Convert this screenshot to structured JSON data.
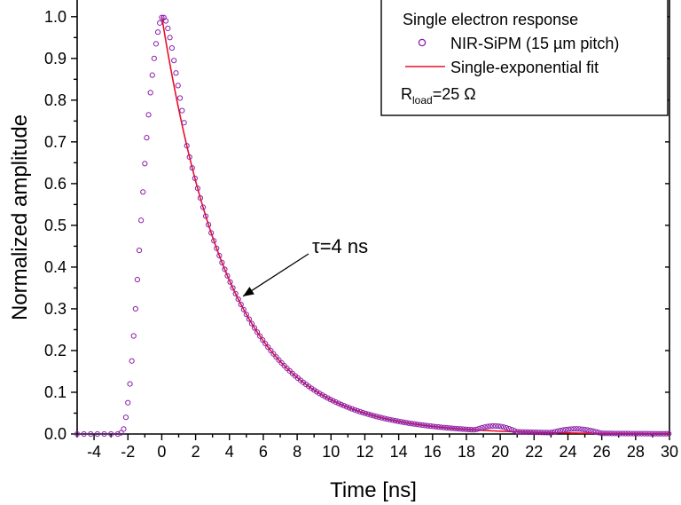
{
  "chart_data": {
    "type": "scatter",
    "title": "",
    "xlabel": "Time [ns]",
    "ylabel": "Normalized amplitude",
    "xlim": [
      -5,
      30
    ],
    "ylim": [
      0,
      1.04
    ],
    "x_ticks": [
      -4,
      -2,
      0,
      2,
      4,
      6,
      8,
      10,
      12,
      14,
      16,
      18,
      20,
      22,
      24,
      26,
      28,
      30
    ],
    "y_ticks": [
      0.0,
      0.1,
      0.2,
      0.3,
      0.4,
      0.5,
      0.6,
      0.7,
      0.8,
      0.9,
      1.0
    ],
    "x_tick_labels": [
      "-4",
      "-2",
      "0",
      "2",
      "4",
      "6",
      "8",
      "10",
      "12",
      "14",
      "16",
      "18",
      "20",
      "22",
      "24",
      "26",
      "28",
      "30"
    ],
    "y_tick_labels": [
      "0.0",
      "0.1",
      "0.2",
      "0.3",
      "0.4",
      "0.5",
      "0.6",
      "0.7",
      "0.8",
      "0.9",
      "1.0"
    ],
    "grid": false,
    "legend": {
      "position": "top-right",
      "title": "Single electron response",
      "entries": [
        {
          "label": "NIR-SiPM (15 µm pitch)",
          "marker": "open-circle",
          "color": "#8B1FA9"
        },
        {
          "label": "Single-exponential fit",
          "marker": "line",
          "color": "#E8102A"
        }
      ],
      "note_prefix": "R",
      "note_sub": "load",
      "note_suffix": "=25 Ω"
    },
    "annotation": {
      "text": "τ=4 ns",
      "arrow_to": [
        4.8,
        0.33
      ]
    },
    "series": [
      {
        "name": "NIR-SiPM (15 µm pitch)",
        "style": "markers",
        "color": "#8B1FA9",
        "points": [
          [
            -5,
            0.0
          ],
          [
            -4.6,
            0.0
          ],
          [
            -4.2,
            0.0
          ],
          [
            -3.8,
            0.0
          ],
          [
            -3.4,
            0.0
          ],
          [
            -3.0,
            0.0
          ],
          [
            -2.6,
            0.0
          ],
          [
            -2.4,
            0.003
          ],
          [
            -2.25,
            0.012
          ],
          [
            -2.12,
            0.04
          ],
          [
            -2.0,
            0.075
          ],
          [
            -1.88,
            0.12
          ],
          [
            -1.77,
            0.175
          ],
          [
            -1.66,
            0.235
          ],
          [
            -1.55,
            0.3
          ],
          [
            -1.44,
            0.37
          ],
          [
            -1.33,
            0.44
          ],
          [
            -1.22,
            0.512
          ],
          [
            -1.11,
            0.58
          ],
          [
            -1.0,
            0.648
          ],
          [
            -0.89,
            0.71
          ],
          [
            -0.78,
            0.765
          ],
          [
            -0.67,
            0.818
          ],
          [
            -0.56,
            0.86
          ],
          [
            -0.45,
            0.9
          ],
          [
            -0.34,
            0.935
          ],
          [
            -0.23,
            0.963
          ],
          [
            -0.12,
            0.985
          ],
          [
            0.0,
            0.998
          ],
          [
            0.12,
            0.998
          ],
          [
            0.24,
            0.99
          ],
          [
            0.36,
            0.972
          ],
          [
            0.48,
            0.95
          ],
          [
            0.6,
            0.925
          ],
          [
            0.72,
            0.895
          ],
          [
            0.84,
            0.865
          ],
          [
            0.96,
            0.835
          ],
          [
            1.08,
            0.805
          ],
          [
            1.2,
            0.775
          ],
          [
            1.32,
            0.746
          ]
        ],
        "decay_from": 1.32,
        "decay_to": 30,
        "decay_step": 0.16,
        "decay_amplitude": 1.0,
        "decay_tau_ns": 4
      },
      {
        "name": "Single-exponential fit",
        "style": "line",
        "color": "#E8102A",
        "x_start": 0.0,
        "x_end": 30,
        "amplitude": 1.0,
        "tau_ns": 4
      }
    ]
  }
}
